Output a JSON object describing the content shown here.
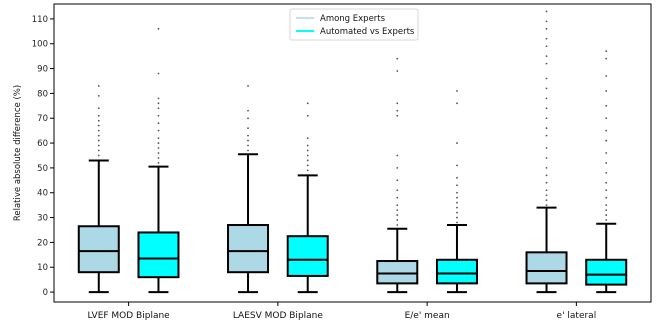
{
  "chart_data": {
    "type": "box",
    "ylabel": "Relative absolute difference (%)",
    "ylim": [
      -4,
      116
    ],
    "yticks": [
      0,
      10,
      20,
      30,
      40,
      50,
      60,
      70,
      80,
      90,
      100,
      110
    ],
    "legend_position": "top-center",
    "categories": [
      "LVEF MOD Biplane",
      "LAESV MOD Biplane",
      "E/e' mean",
      "e' lateral"
    ],
    "series": [
      {
        "name": "Among Experts",
        "color": "#add8e6",
        "boxes": [
          {
            "whislo": 0,
            "q1": 8,
            "med": 16.5,
            "q3": 26.5,
            "whishi": 53,
            "fliers": [
              55,
              57,
              59,
              61,
              63,
              65,
              67,
              69,
              71,
              74,
              79,
              83
            ]
          },
          {
            "whislo": 0,
            "q1": 8,
            "med": 16.5,
            "q3": 27,
            "whishi": 55.5,
            "fliers": [
              57,
              59,
              61,
              63,
              66,
              70,
              73,
              83
            ]
          },
          {
            "whislo": 0,
            "q1": 3.5,
            "med": 7.5,
            "q3": 12.5,
            "whishi": 25.5,
            "fliers": [
              27,
              29,
              31,
              33,
              35,
              38,
              41,
              45,
              50,
              55,
              71,
              73,
              76,
              89,
              94
            ]
          },
          {
            "whislo": 0,
            "q1": 3.5,
            "med": 8.5,
            "q3": 16,
            "whishi": 34,
            "fliers": [
              35,
              37,
              39,
              41,
              44,
              47,
              50,
              54,
              58,
              63,
              66,
              70,
              74,
              78,
              82,
              86,
              92,
              95,
              99,
              102,
              106,
              109,
              113
            ]
          }
        ]
      },
      {
        "name": "Automated vs Experts",
        "color": "#00ffff",
        "boxes": [
          {
            "whislo": 0,
            "q1": 6,
            "med": 13.5,
            "q3": 24,
            "whishi": 50.5,
            "fliers": [
              52,
              54,
              56,
              58,
              60,
              62,
              65,
              68,
              71,
              74,
              76,
              78,
              88,
              106
            ]
          },
          {
            "whislo": 0,
            "q1": 6.5,
            "med": 13,
            "q3": 22.5,
            "whishi": 47,
            "fliers": [
              49,
              51,
              53,
              55,
              57,
              59,
              62,
              71,
              76
            ]
          },
          {
            "whislo": 0,
            "q1": 3.5,
            "med": 7.5,
            "q3": 13,
            "whishi": 27,
            "fliers": [
              28,
              30,
              32,
              34,
              36,
              38,
              40,
              43,
              46,
              51,
              60,
              76,
              81
            ]
          },
          {
            "whislo": 0,
            "q1": 3,
            "med": 7,
            "q3": 13,
            "whishi": 27.5,
            "fliers": [
              29,
              31,
              33,
              35,
              38,
              41,
              44,
              48,
              52,
              56,
              61,
              65,
              70,
              75,
              81,
              87,
              94,
              97
            ]
          }
        ]
      }
    ]
  }
}
